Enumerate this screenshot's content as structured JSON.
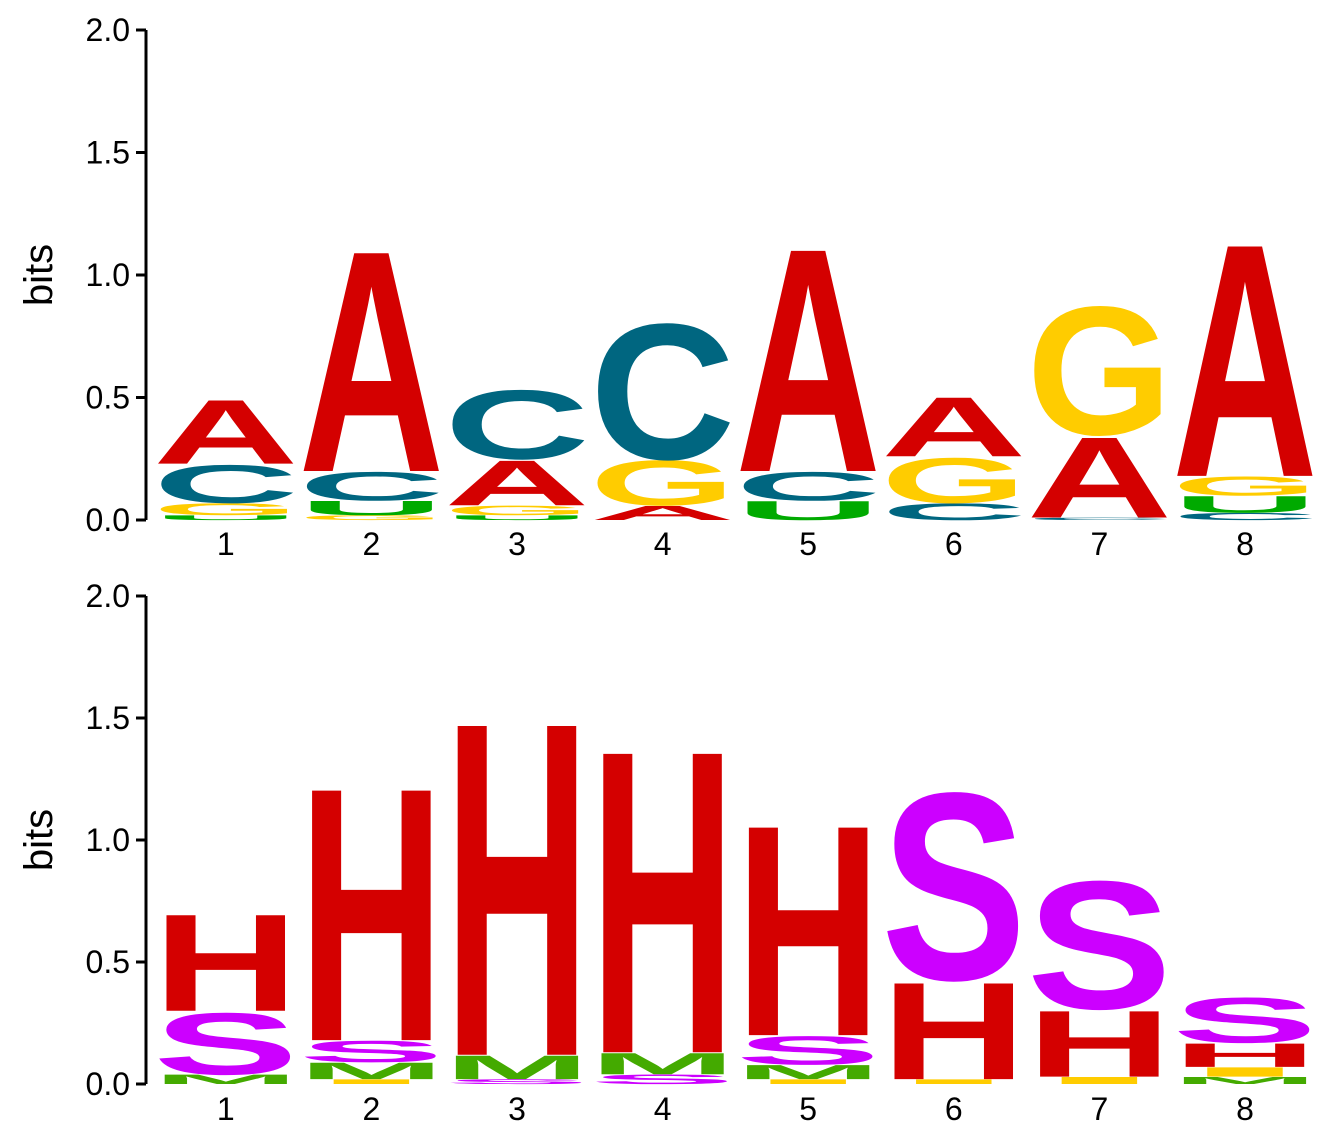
{
  "colors": {
    "A": "#d40000",
    "C": "#006680",
    "G": "#ffcc00",
    "U": "#00aa00",
    "H": "#d40000",
    "S": "#cc00ff",
    "M": "#44aa00",
    "I": "#ffcc00"
  },
  "chart_data": [
    {
      "type": "sequence-logo",
      "ylabel": "bits",
      "ylim": [
        0,
        2
      ],
      "yticks": [
        "0.0",
        "0.5",
        "1.0",
        "1.5",
        "2.0"
      ],
      "positions": [
        "1",
        "2",
        "3",
        "4",
        "5",
        "6",
        "7",
        "8"
      ],
      "stacks": [
        [
          {
            "letter": "U",
            "bits": 0.02
          },
          {
            "letter": "G",
            "bits": 0.05
          },
          {
            "letter": "C",
            "bits": 0.16
          },
          {
            "letter": "A",
            "bits": 0.27
          }
        ],
        [
          {
            "letter": "G",
            "bits": 0.02
          },
          {
            "letter": "U",
            "bits": 0.06
          },
          {
            "letter": "C",
            "bits": 0.12
          },
          {
            "letter": "A",
            "bits": 0.93
          }
        ],
        [
          {
            "letter": "U",
            "bits": 0.02
          },
          {
            "letter": "G",
            "bits": 0.04
          },
          {
            "letter": "A",
            "bits": 0.19
          },
          {
            "letter": "C",
            "bits": 0.29
          }
        ],
        [
          {
            "letter": "A",
            "bits": 0.06
          },
          {
            "letter": "G",
            "bits": 0.19
          },
          {
            "letter": "C",
            "bits": 0.57
          }
        ],
        [
          {
            "letter": "U",
            "bits": 0.08
          },
          {
            "letter": "C",
            "bits": 0.12
          },
          {
            "letter": "A",
            "bits": 0.94
          }
        ],
        [
          {
            "letter": "C",
            "bits": 0.07
          },
          {
            "letter": "G",
            "bits": 0.19
          },
          {
            "letter": "A",
            "bits": 0.25
          }
        ],
        [
          {
            "letter": "C",
            "bits": 0.01
          },
          {
            "letter": "A",
            "bits": 0.34
          },
          {
            "letter": "G",
            "bits": 0.54
          }
        ],
        [
          {
            "letter": "C",
            "bits": 0.03
          },
          {
            "letter": "U",
            "bits": 0.07
          },
          {
            "letter": "G",
            "bits": 0.08
          },
          {
            "letter": "A",
            "bits": 0.98
          }
        ]
      ]
    },
    {
      "type": "sequence-logo",
      "ylabel": "bits",
      "ylim": [
        0,
        2
      ],
      "yticks": [
        "0.0",
        "0.5",
        "1.0",
        "1.5",
        "2.0"
      ],
      "positions": [
        "1",
        "2",
        "3",
        "4",
        "5",
        "6",
        "7",
        "8"
      ],
      "stacks": [
        [
          {
            "letter": "M",
            "bits": 0.04
          },
          {
            "letter": "S",
            "bits": 0.26
          },
          {
            "letter": "H",
            "bits": 0.41
          }
        ],
        [
          {
            "letter": "I",
            "bits": 0.02
          },
          {
            "letter": "M",
            "bits": 0.07
          },
          {
            "letter": "S",
            "bits": 0.09
          },
          {
            "letter": "H",
            "bits": 1.07
          }
        ],
        [
          {
            "letter": "S",
            "bits": 0.02
          },
          {
            "letter": "M",
            "bits": 0.1
          },
          {
            "letter": "H",
            "bits": 1.41
          }
        ],
        [
          {
            "letter": "S",
            "bits": 0.04
          },
          {
            "letter": "M",
            "bits": 0.09
          },
          {
            "letter": "H",
            "bits": 1.28
          }
        ],
        [
          {
            "letter": "I",
            "bits": 0.02
          },
          {
            "letter": "M",
            "bits": 0.06
          },
          {
            "letter": "S",
            "bits": 0.12
          },
          {
            "letter": "H",
            "bits": 0.89
          }
        ],
        [
          {
            "letter": "I",
            "bits": 0.02
          },
          {
            "letter": "H",
            "bits": 0.41
          },
          {
            "letter": "S",
            "bits": 0.79
          }
        ],
        [
          {
            "letter": "I",
            "bits": 0.03
          },
          {
            "letter": "H",
            "bits": 0.28
          },
          {
            "letter": "S",
            "bits": 0.54
          }
        ],
        [
          {
            "letter": "M",
            "bits": 0.03
          },
          {
            "letter": "I",
            "bits": 0.04
          },
          {
            "letter": "H",
            "bits": 0.1
          },
          {
            "letter": "S",
            "bits": 0.19
          }
        ]
      ]
    }
  ]
}
